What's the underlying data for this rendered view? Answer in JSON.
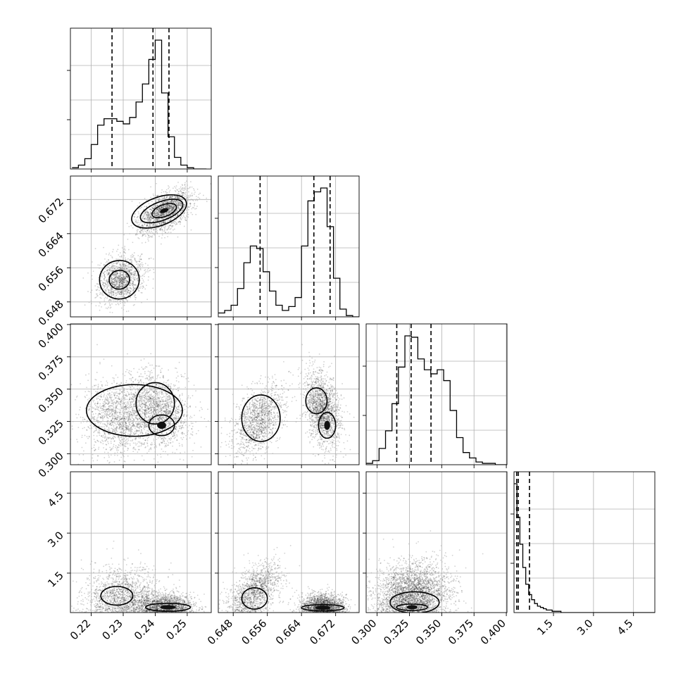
{
  "chart_data": {
    "type": "corner",
    "grid": true,
    "parameters": [
      {
        "ticks": [
          0.22,
          0.23,
          0.24,
          0.25
        ],
        "tick_labels": [
          "0.22",
          "0.23",
          "0.24",
          "0.25"
        ],
        "range": [
          0.2135,
          0.2575
        ],
        "hist": {
          "start": 0.214,
          "step": 0.002,
          "counts": [
            1,
            3,
            8,
            19,
            34,
            39,
            39,
            37,
            35,
            40,
            52,
            66,
            85,
            100,
            59,
            25,
            9,
            3,
            1,
            0,
            0
          ]
        },
        "quantiles": [
          0.2265,
          0.2393,
          0.2443
        ]
      },
      {
        "ticks": [
          0.648,
          0.656,
          0.664,
          0.672
        ],
        "tick_labels": [
          "0.648",
          "0.656",
          "0.664",
          "0.672"
        ],
        "range": [
          0.6445,
          0.6775
        ],
        "hist": {
          "start": 0.6445,
          "step": 0.0015,
          "counts": [
            3,
            5,
            9,
            22,
            42,
            55,
            53,
            35,
            20,
            9,
            5,
            8,
            15,
            55,
            90,
            97,
            100,
            70,
            30,
            6,
            1,
            0
          ]
        },
        "quantiles": [
          0.6543,
          0.6669,
          0.6707
        ]
      },
      {
        "ticks": [
          0.3,
          0.325,
          0.35,
          0.375,
          0.4
        ],
        "tick_labels": [
          "0.300",
          "0.325",
          "0.350",
          "0.375",
          "0.400"
        ],
        "range": [
          0.2915,
          0.4005
        ],
        "hist": {
          "start": 0.2915,
          "step": 0.005,
          "counts": [
            1,
            3,
            12,
            25,
            45,
            72,
            95,
            94,
            78,
            70,
            67,
            70,
            62,
            40,
            20,
            9,
            5,
            2,
            1,
            1,
            0,
            0
          ]
        },
        "quantiles": [
          0.3152,
          0.3263,
          0.3417
        ]
      },
      {
        "ticks": [
          1.5,
          3.0,
          4.5
        ],
        "tick_labels": [
          "1.5",
          "3.0",
          "4.5"
        ],
        "range": [
          0.02,
          5.3
        ],
        "hist": {
          "start": 0.02,
          "step": 0.11,
          "counts": [
            100,
            74,
            53,
            35,
            22,
            14,
            10,
            7,
            5,
            4,
            3,
            2,
            2,
            1,
            1,
            1,
            0,
            0,
            0,
            0,
            0,
            0,
            0,
            0,
            0,
            0,
            0,
            0,
            0,
            0,
            0,
            0,
            0,
            0,
            0,
            0,
            0,
            0,
            0,
            0,
            0,
            0,
            0,
            0,
            0,
            0,
            0,
            0
          ]
        },
        "quantiles": [
          0.12,
          0.18,
          0.6
        ]
      }
    ],
    "pairs": [
      {
        "row": 1,
        "col": 0,
        "clusters": [
          {
            "cx": 0.2293,
            "cy": 0.6532,
            "sx": 0.0034,
            "sy": 0.0027,
            "rho": 0.2,
            "n": 1300
          },
          {
            "cx": 0.243,
            "cy": 0.6693,
            "sx": 0.0042,
            "sy": 0.0026,
            "rho": 0.55,
            "n": 1700
          }
        ],
        "contours": [
          {
            "cx": 0.2288,
            "cy": 0.6532,
            "rx": 0.0062,
            "ry": 0.0045,
            "rot": 0.3
          },
          {
            "cx": 0.2288,
            "cy": 0.6532,
            "rx": 0.0032,
            "ry": 0.0022,
            "rot": 0.3
          },
          {
            "cx": 0.2412,
            "cy": 0.6692,
            "rx": 0.009,
            "ry": 0.0033,
            "rot": 0.6
          },
          {
            "cx": 0.242,
            "cy": 0.6693,
            "rx": 0.007,
            "ry": 0.0022,
            "rot": 0.6
          },
          {
            "cx": 0.2428,
            "cy": 0.6694,
            "rx": 0.004,
            "ry": 0.0014,
            "rot": 0.6
          }
        ]
      },
      {
        "row": 2,
        "col": 0,
        "clusters": [
          {
            "cx": 0.229,
            "cy": 0.328,
            "sx": 0.006,
            "sy": 0.014,
            "rho": 0.0,
            "n": 1500
          },
          {
            "cx": 0.241,
            "cy": 0.334,
            "sx": 0.005,
            "sy": 0.014,
            "rho": -0.2,
            "n": 1500
          }
        ],
        "contours": [
          {
            "cx": 0.2335,
            "cy": 0.3335,
            "rx": 0.015,
            "ry": 0.02,
            "rot": 0.0
          },
          {
            "cx": 0.24,
            "cy": 0.339,
            "rx": 0.006,
            "ry": 0.016,
            "rot": 0.0
          },
          {
            "cx": 0.242,
            "cy": 0.322,
            "rx": 0.004,
            "ry": 0.008,
            "rot": 0.0
          }
        ]
      },
      {
        "row": 2,
        "col": 1,
        "clusters": [
          {
            "cx": 0.654,
            "cy": 0.326,
            "sx": 0.003,
            "sy": 0.014,
            "rho": 0.5,
            "n": 1300
          },
          {
            "cx": 0.669,
            "cy": 0.334,
            "sx": 0.002,
            "sy": 0.014,
            "rho": -0.3,
            "n": 1700
          }
        ],
        "contours": [
          {
            "cx": 0.6545,
            "cy": 0.3275,
            "rx": 0.0045,
            "ry": 0.018,
            "rot": 0.0
          },
          {
            "cx": 0.6675,
            "cy": 0.341,
            "rx": 0.0025,
            "ry": 0.01,
            "rot": 0.0
          },
          {
            "cx": 0.67,
            "cy": 0.322,
            "rx": 0.002,
            "ry": 0.01,
            "rot": 0.0
          }
        ]
      },
      {
        "row": 3,
        "col": 0,
        "clusters": [
          {
            "cx": 0.23,
            "cy": 0.6,
            "sx": 0.006,
            "sy": 0.55,
            "rho": 0.0,
            "n": 1500
          },
          {
            "cx": 0.243,
            "cy": 0.25,
            "sx": 0.0045,
            "sy": 0.25,
            "rho": 0.0,
            "n": 1500
          }
        ],
        "contours": [
          {
            "cx": 0.228,
            "cy": 0.65,
            "rx": 0.005,
            "ry": 0.35,
            "rot": 0.0
          },
          {
            "cx": 0.244,
            "cy": 0.22,
            "rx": 0.007,
            "ry": 0.15,
            "rot": 0.0
          }
        ]
      },
      {
        "row": 3,
        "col": 1,
        "clusters": [
          {
            "cx": 0.653,
            "cy": 0.8,
            "sx": 0.003,
            "sy": 0.55,
            "rho": 0.5,
            "n": 1300
          },
          {
            "cx": 0.669,
            "cy": 0.25,
            "sx": 0.0025,
            "sy": 0.25,
            "rho": 0.0,
            "n": 1700
          }
        ],
        "contours": [
          {
            "cx": 0.653,
            "cy": 0.55,
            "rx": 0.003,
            "ry": 0.4,
            "rot": 0.0
          },
          {
            "cx": 0.669,
            "cy": 0.2,
            "rx": 0.005,
            "ry": 0.12,
            "rot": 0.0
          }
        ]
      },
      {
        "row": 3,
        "col": 2,
        "clusters": [
          {
            "cx": 0.328,
            "cy": 0.7,
            "sx": 0.014,
            "sy": 0.6,
            "rho": 0.1,
            "n": 3000
          }
        ],
        "contours": [
          {
            "cx": 0.329,
            "cy": 0.4,
            "rx": 0.019,
            "ry": 0.4,
            "rot": 0.0
          },
          {
            "cx": 0.327,
            "cy": 0.22,
            "rx": 0.012,
            "ry": 0.12,
            "rot": 0.0
          }
        ]
      }
    ]
  }
}
